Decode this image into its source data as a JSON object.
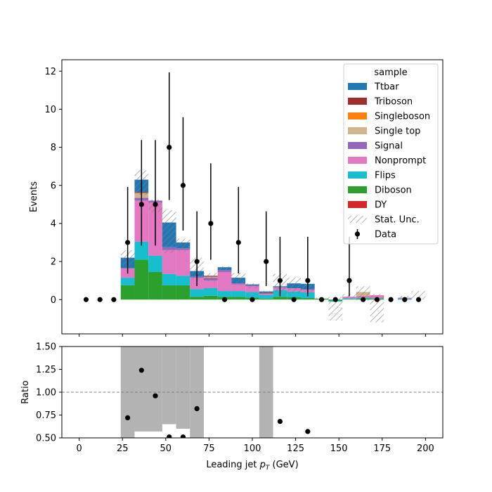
{
  "chart_data": [
    {
      "type": "bar",
      "subtype": "stacked-histogram",
      "xlim": [
        -10,
        210
      ],
      "ylim": [
        -1.8,
        12.6
      ],
      "ylabel": "Events",
      "yticks": [
        0,
        2,
        4,
        6,
        8,
        10,
        12
      ],
      "xticks": [
        0,
        25,
        50,
        75,
        100,
        125,
        150,
        175,
        200
      ],
      "bin_edges": [
        0,
        8,
        16,
        24,
        32,
        40,
        48,
        56,
        64,
        72,
        80,
        88,
        96,
        104,
        112,
        120,
        128,
        136,
        144,
        152,
        160,
        168,
        176,
        184,
        192,
        200
      ],
      "legend": {
        "title": "sample",
        "placement": "upper right"
      },
      "series": [
        {
          "name": "DY",
          "color": "#d62728",
          "values": [
            0,
            0,
            0,
            0,
            0,
            0,
            0,
            0,
            0,
            0,
            0,
            0,
            0,
            0,
            0,
            0,
            0,
            0,
            0,
            0,
            0,
            0,
            0,
            0,
            0
          ]
        },
        {
          "name": "Diboson",
          "color": "#2ca02c",
          "values": [
            0,
            0,
            0,
            0.75,
            2.1,
            1.45,
            0.75,
            0.75,
            0.15,
            0.2,
            0.15,
            0.15,
            0.1,
            0.05,
            0.15,
            0.12,
            0.08,
            0.05,
            -0.1,
            0.02,
            0.05,
            0.05,
            0,
            0,
            0
          ]
        },
        {
          "name": "Flips",
          "color": "#17becf",
          "values": [
            0,
            0,
            0,
            0.4,
            0.95,
            0.85,
            0.6,
            0.5,
            0.4,
            0.4,
            0.3,
            0.3,
            0.3,
            0.2,
            0.35,
            0.3,
            0.3,
            0,
            0.05,
            0.05,
            0.05,
            0.03,
            0,
            0.05,
            0
          ]
        },
        {
          "name": "Nonprompt",
          "color": "#e377c2",
          "values": [
            0,
            0,
            0,
            0.5,
            2.15,
            2.8,
            1.25,
            1.35,
            0.6,
            0.4,
            1.0,
            0.35,
            0.3,
            0.05,
            0.15,
            0.18,
            0.15,
            0,
            0,
            0.08,
            0.1,
            0.15,
            0,
            0.05,
            0
          ]
        },
        {
          "name": "Signal",
          "color": "#9467bd",
          "values": [
            0,
            0,
            0,
            0,
            0.15,
            0.1,
            0.15,
            0.1,
            0.05,
            0.15,
            0.1,
            0.05,
            0.05,
            0.05,
            0,
            0,
            0,
            0,
            0,
            0,
            0,
            0,
            0,
            0,
            0
          ]
        },
        {
          "name": "Single top",
          "color": "#d2b48c",
          "values": [
            0,
            0,
            0,
            0,
            0.25,
            0,
            0,
            0,
            0,
            0.05,
            0,
            0,
            0,
            0,
            0,
            0,
            0,
            0,
            0,
            0,
            0.2,
            0,
            0,
            0,
            0
          ]
        },
        {
          "name": "Singleboson",
          "color": "#ff7f0e",
          "values": [
            0,
            0,
            0,
            0,
            0,
            0,
            0,
            0,
            0,
            0,
            0,
            0,
            0,
            0,
            0,
            0,
            0,
            0,
            0,
            0,
            0,
            0,
            0,
            0,
            0
          ]
        },
        {
          "name": "Triboson",
          "color": "#a02c2c",
          "values": [
            0,
            0,
            0,
            0,
            0.05,
            0,
            0,
            0,
            0,
            0.05,
            0,
            0,
            0,
            0.03,
            0,
            0,
            0,
            0,
            0,
            0,
            0,
            0,
            0,
            0,
            0
          ]
        },
        {
          "name": "Ttbar",
          "color": "#1f77b4",
          "values": [
            0,
            0,
            0,
            0.55,
            0.65,
            0,
            1.3,
            0.3,
            0.3,
            0,
            0.15,
            0.3,
            0.05,
            0.05,
            0.05,
            0.25,
            0.3,
            0,
            0,
            0,
            0,
            0,
            0,
            0,
            0
          ]
        }
      ],
      "stat_unc": {
        "name": "Stat. Unc.",
        "low": [
          0,
          0,
          0,
          1.8,
          5.5,
          4.6,
          2.45,
          2.55,
          1.05,
          0.95,
          1.45,
          0.8,
          0.6,
          0.3,
          0.2,
          0.35,
          0.4,
          0,
          -1.1,
          0,
          -0.05,
          -1.2,
          0,
          0,
          0
        ],
        "high": [
          0,
          0,
          0,
          2.6,
          6.8,
          5.25,
          4.7,
          3.2,
          2.2,
          1.4,
          1.75,
          1.4,
          0.85,
          0.45,
          1.35,
          1.15,
          0.8,
          0.1,
          0.15,
          0.3,
          0.7,
          0.3,
          0,
          0.2,
          0.45
        ]
      },
      "data_points": {
        "name": "Data",
        "x": [
          4,
          12,
          20,
          28,
          36,
          44,
          52,
          60,
          68,
          76,
          84,
          92,
          100,
          108,
          116,
          124,
          132,
          140,
          148,
          156,
          164,
          172,
          180,
          188,
          196
        ],
        "y": [
          0,
          0,
          0,
          3,
          5,
          5,
          8,
          6,
          2,
          4,
          0,
          3,
          0,
          2,
          1,
          0,
          1,
          0,
          0,
          1,
          0,
          0,
          0,
          0,
          0
        ],
        "yerr_low": [
          0,
          0,
          0,
          1.63,
          2.16,
          2.16,
          2.77,
          2.37,
          1.29,
          1.91,
          0,
          1.63,
          0,
          1.29,
          0.83,
          0,
          0.83,
          0,
          0,
          0.83,
          0,
          0,
          0,
          0,
          0
        ],
        "yerr_high": [
          0,
          0,
          0,
          2.92,
          3.38,
          3.38,
          3.94,
          3.58,
          2.64,
          3.16,
          0,
          2.92,
          0,
          2.64,
          2.3,
          0,
          2.3,
          0,
          0,
          2.3,
          0,
          0,
          0,
          0,
          0
        ]
      }
    },
    {
      "type": "scatter",
      "subtype": "ratio",
      "xlim": [
        -10,
        210
      ],
      "ylim": [
        0.5,
        1.5
      ],
      "xlabel": "Leading jet  p_T (GeV)",
      "xlabel_main": "Leading jet  ",
      "xlabel_var": "p",
      "xlabel_sub": "T",
      "xlabel_unit": " (GeV)",
      "ylabel": "Ratio",
      "yticks": [
        0.5,
        0.75,
        1.0,
        1.25,
        1.5
      ],
      "ytick_labels": [
        "0.50",
        "0.75",
        "1.00",
        "1.25",
        "1.50"
      ],
      "xticks": [
        0,
        25,
        50,
        75,
        100,
        125,
        150,
        175,
        200
      ],
      "xtick_labels": [
        "0",
        "25",
        "50",
        "75",
        "100",
        "125",
        "150",
        "175",
        "200"
      ],
      "reference_line": 1.0,
      "unc_band": [
        {
          "x0": 24,
          "x1": 32,
          "low": 0.5,
          "high": 1.5
        },
        {
          "x0": 32,
          "x1": 48,
          "low": 0.57,
          "high": 1.5
        },
        {
          "x0": 48,
          "x1": 56,
          "low": 0.65,
          "high": 1.5
        },
        {
          "x0": 56,
          "x1": 64,
          "low": 0.6,
          "high": 1.5
        },
        {
          "x0": 64,
          "x1": 72,
          "low": 0.5,
          "high": 1.5
        },
        {
          "x0": 104,
          "x1": 112,
          "low": 0.5,
          "high": 1.5
        }
      ],
      "points": {
        "x": [
          28,
          36,
          44,
          52,
          60,
          68,
          116,
          132
        ],
        "y": [
          0.72,
          1.24,
          0.96,
          0.51,
          0.51,
          0.82,
          0.68,
          0.57
        ]
      }
    }
  ]
}
